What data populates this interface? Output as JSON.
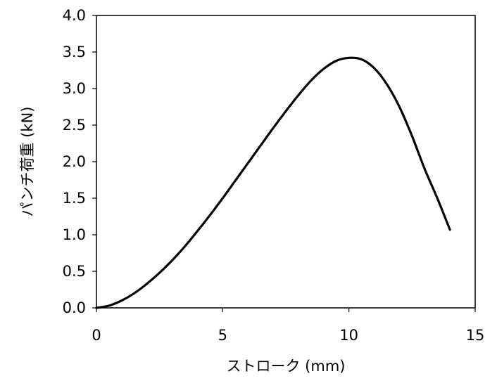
{
  "chart_data": {
    "type": "line",
    "title": "",
    "xlabel": "ストローク (mm)",
    "ylabel": "パンチ荷重 (kN)",
    "xlim": [
      0,
      15
    ],
    "ylim": [
      0,
      4.0
    ],
    "xticks": [
      "0",
      "5",
      "10",
      "15"
    ],
    "yticks": [
      "0.0",
      "0.5",
      "1.0",
      "1.5",
      "2.0",
      "2.5",
      "3.0",
      "3.5",
      "4.0"
    ],
    "grid": false,
    "legend": "none",
    "series": [
      {
        "color": "#000000",
        "x": [
          0,
          0.5,
          1,
          1.5,
          2,
          2.5,
          3,
          3.5,
          4,
          4.5,
          5,
          5.5,
          6,
          6.5,
          7,
          7.5,
          8,
          8.5,
          9,
          9.5,
          10,
          10.5,
          11,
          11.5,
          12,
          12.5,
          13,
          13.5,
          14
        ],
        "y": [
          0.0,
          0.03,
          0.1,
          0.2,
          0.33,
          0.48,
          0.65,
          0.84,
          1.05,
          1.27,
          1.5,
          1.74,
          1.98,
          2.22,
          2.46,
          2.69,
          2.91,
          3.11,
          3.27,
          3.38,
          3.42,
          3.4,
          3.28,
          3.06,
          2.75,
          2.35,
          1.9,
          1.5,
          1.07
        ]
      }
    ]
  }
}
